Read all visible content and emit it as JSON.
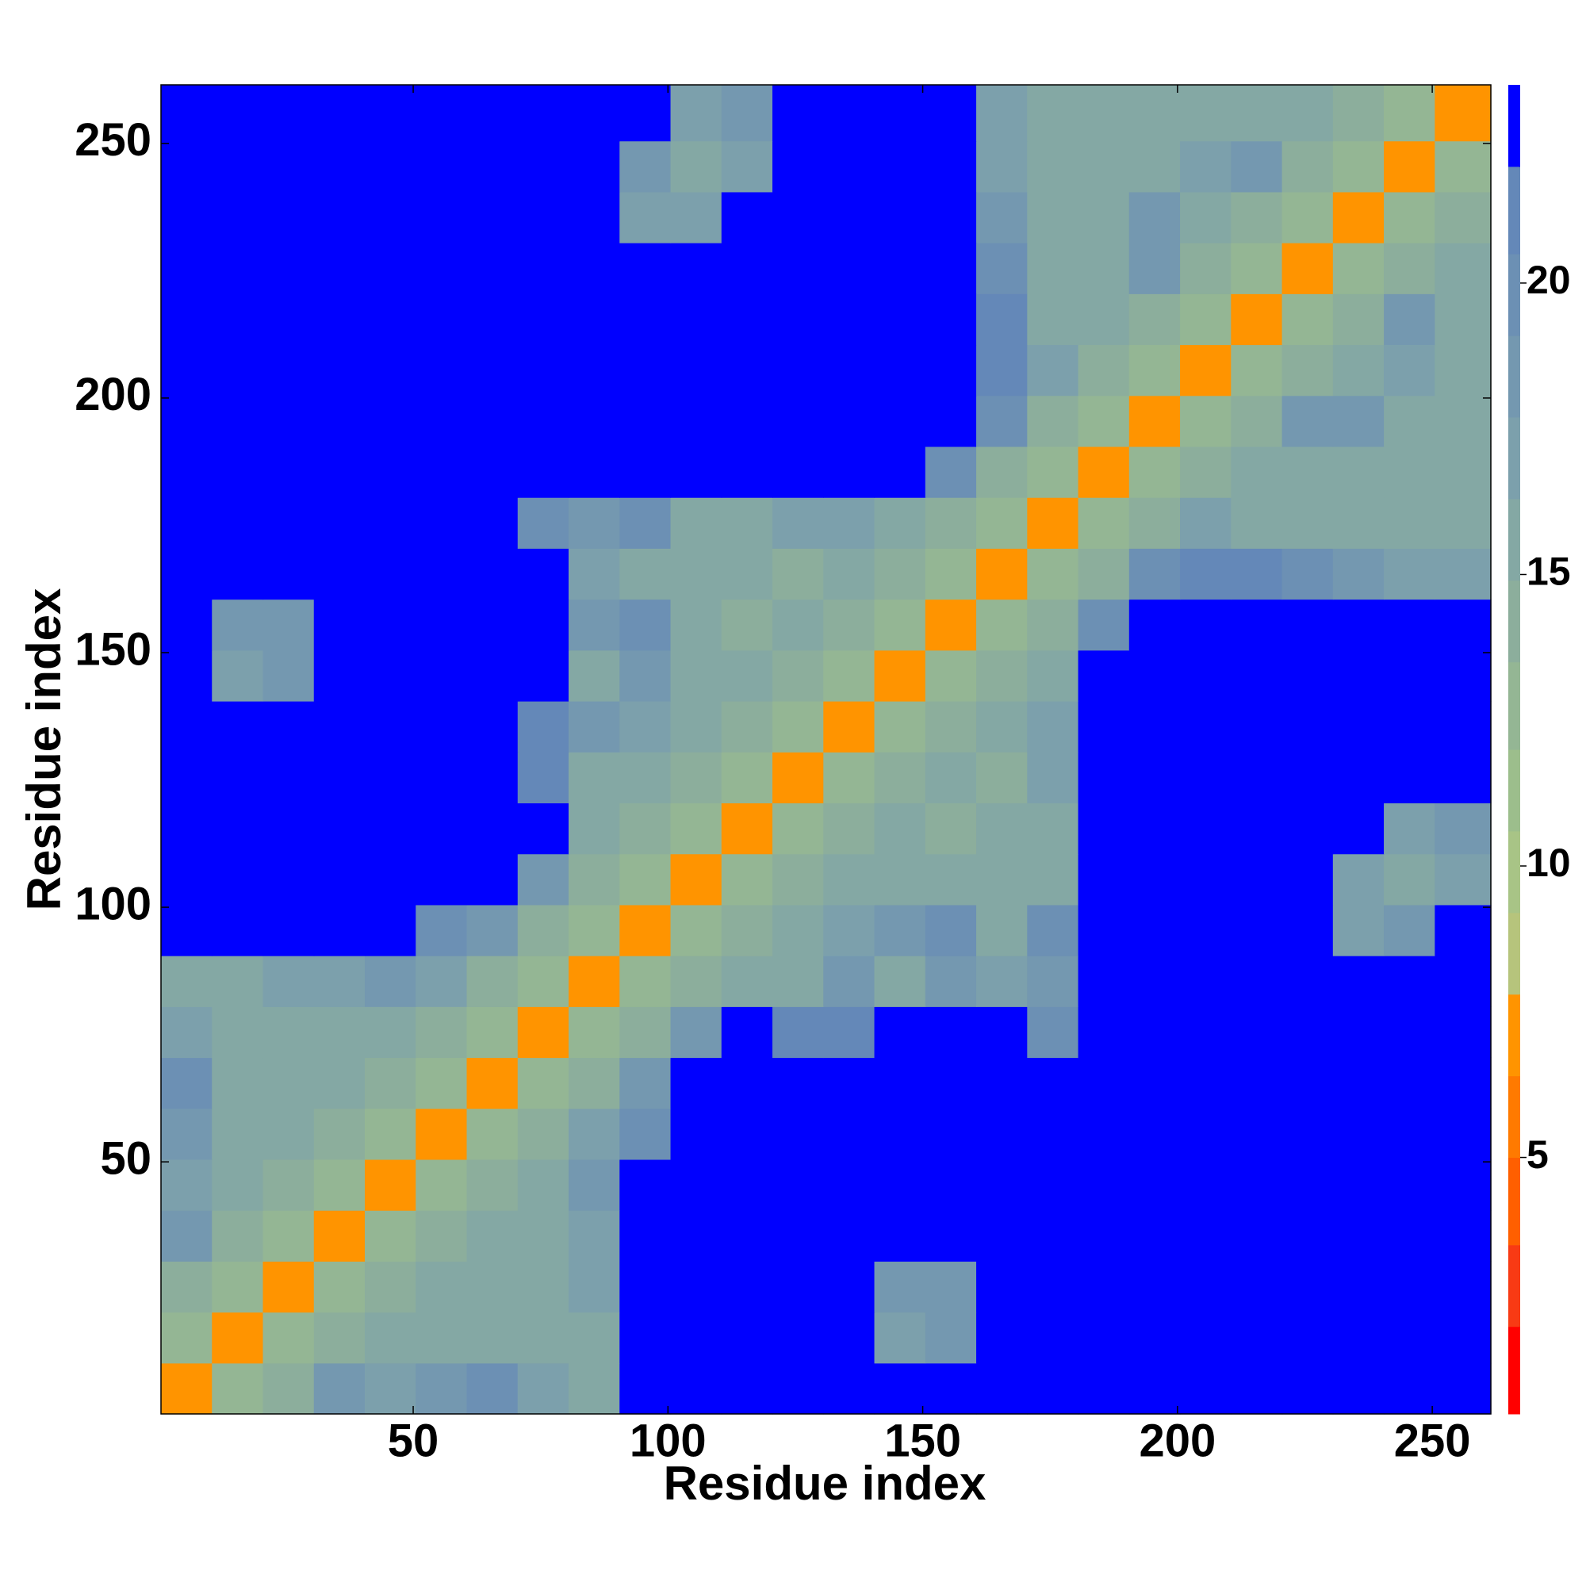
{
  "chart_data": {
    "type": "heatmap",
    "x_label": "Residue index",
    "y_label": "Residue index",
    "xbins": [
      0.5,
      10.5,
      20.5,
      30.5,
      40.5,
      50.5,
      60.5,
      70.5,
      80.5,
      90.5,
      100.5,
      110.5,
      120.5,
      130.5,
      140.5,
      150.5,
      160.5,
      170.5,
      180.5,
      190.5,
      200.5,
      210.5,
      220.5,
      230.5,
      240.5,
      250.5,
      261.5
    ],
    "ybins": [
      0.5,
      10.5,
      20.5,
      30.5,
      40.5,
      50.5,
      60.5,
      70.5,
      80.5,
      90.5,
      100.5,
      110.5,
      120.5,
      130.5,
      140.5,
      150.5,
      160.5,
      170.5,
      180.5,
      190.5,
      200.5,
      210.5,
      220.5,
      230.5,
      240.5,
      250.5,
      261.5
    ],
    "xlim": [
      0.5,
      261.5
    ],
    "ylim": [
      0.5,
      261.5
    ],
    "xticks": [
      50,
      100,
      150,
      200,
      250
    ],
    "yticks": [
      50,
      100,
      150,
      200,
      250
    ],
    "z": [
      [
        7,
        12,
        14,
        18,
        17,
        19,
        20,
        17,
        16,
        23,
        23,
        23,
        23,
        23,
        23,
        23,
        23,
        23,
        23,
        23,
        23,
        23,
        23,
        23,
        23,
        23
      ],
      [
        12,
        7,
        12,
        14,
        16,
        16,
        16,
        16,
        16,
        23,
        23,
        23,
        23,
        23,
        17,
        18,
        23,
        23,
        23,
        23,
        23,
        23,
        23,
        23,
        23,
        23
      ],
      [
        14,
        12,
        7,
        12,
        14,
        16,
        16,
        16,
        17,
        23,
        23,
        23,
        23,
        23,
        19,
        19,
        23,
        23,
        23,
        23,
        23,
        23,
        23,
        23,
        23,
        23
      ],
      [
        18,
        14,
        12,
        7,
        12,
        14,
        16,
        16,
        17,
        23,
        23,
        23,
        23,
        23,
        23,
        23,
        23,
        23,
        23,
        23,
        23,
        23,
        23,
        23,
        23,
        23
      ],
      [
        17,
        16,
        14,
        12,
        7,
        12,
        14,
        16,
        18,
        23,
        23,
        23,
        23,
        23,
        23,
        23,
        23,
        23,
        23,
        23,
        23,
        23,
        23,
        23,
        23,
        23
      ],
      [
        19,
        16,
        16,
        14,
        12,
        7,
        12,
        14,
        17,
        20,
        23,
        23,
        23,
        23,
        23,
        23,
        23,
        23,
        23,
        23,
        23,
        23,
        23,
        23,
        23,
        23
      ],
      [
        20,
        16,
        16,
        16,
        14,
        12,
        7,
        12,
        14,
        18,
        23,
        23,
        23,
        23,
        23,
        23,
        23,
        23,
        23,
        23,
        23,
        23,
        23,
        23,
        23,
        23
      ],
      [
        17,
        16,
        16,
        16,
        16,
        14,
        12,
        7,
        12,
        14,
        18,
        23,
        21,
        21,
        23,
        23,
        23,
        20,
        23,
        23,
        23,
        23,
        23,
        23,
        23,
        23
      ],
      [
        16,
        16,
        17,
        17,
        18,
        17,
        14,
        12,
        7,
        12,
        14,
        15,
        16,
        19,
        16,
        18,
        17,
        19,
        23,
        23,
        23,
        23,
        23,
        23,
        23,
        23
      ],
      [
        23,
        23,
        23,
        23,
        23,
        20,
        18,
        14,
        12,
        7,
        12,
        14,
        15,
        17,
        18,
        20,
        16,
        20,
        23,
        23,
        23,
        23,
        23,
        17,
        19,
        23
      ],
      [
        23,
        23,
        23,
        23,
        23,
        23,
        23,
        18,
        14,
        12,
        7,
        12,
        14,
        15,
        16,
        16,
        15,
        16,
        23,
        23,
        23,
        23,
        23,
        17,
        16,
        17
      ],
      [
        23,
        23,
        23,
        23,
        23,
        23,
        23,
        23,
        15,
        14,
        12,
        7,
        12,
        14,
        15,
        14,
        15,
        15,
        23,
        23,
        23,
        23,
        23,
        23,
        17,
        18
      ],
      [
        23,
        23,
        23,
        23,
        23,
        23,
        23,
        21,
        16,
        15,
        14,
        12,
        7,
        12,
        14,
        15,
        14,
        17,
        23,
        23,
        23,
        23,
        23,
        23,
        23,
        23
      ],
      [
        23,
        23,
        23,
        23,
        23,
        23,
        23,
        21,
        19,
        17,
        15,
        14,
        12,
        7,
        12,
        14,
        16,
        17,
        23,
        23,
        23,
        23,
        23,
        23,
        23,
        23
      ],
      [
        23,
        17,
        19,
        23,
        23,
        23,
        23,
        23,
        16,
        18,
        16,
        15,
        14,
        12,
        7,
        12,
        14,
        15,
        23,
        23,
        23,
        23,
        23,
        23,
        23,
        23
      ],
      [
        23,
        18,
        19,
        23,
        23,
        23,
        23,
        23,
        18,
        20,
        16,
        14,
        15,
        14,
        12,
        7,
        12,
        14,
        20,
        23,
        23,
        23,
        23,
        23,
        23,
        23
      ],
      [
        23,
        23,
        23,
        23,
        23,
        23,
        23,
        23,
        17,
        16,
        15,
        15,
        14,
        16,
        14,
        12,
        7,
        12,
        14,
        20,
        21,
        21,
        20,
        19,
        17,
        17
      ],
      [
        23,
        23,
        23,
        23,
        23,
        23,
        23,
        20,
        19,
        20,
        16,
        15,
        17,
        17,
        15,
        14,
        12,
        7,
        12,
        14,
        17,
        16,
        16,
        16,
        16,
        16
      ],
      [
        23,
        23,
        23,
        23,
        23,
        23,
        23,
        23,
        23,
        23,
        23,
        23,
        23,
        23,
        23,
        20,
        14,
        12,
        7,
        12,
        14,
        16,
        16,
        16,
        16,
        16
      ],
      [
        23,
        23,
        23,
        23,
        23,
        23,
        23,
        23,
        23,
        23,
        23,
        23,
        23,
        23,
        23,
        23,
        20,
        14,
        12,
        7,
        12,
        14,
        18,
        18,
        16,
        16
      ],
      [
        23,
        23,
        23,
        23,
        23,
        23,
        23,
        23,
        23,
        23,
        23,
        23,
        23,
        23,
        23,
        23,
        21,
        17,
        14,
        12,
        7,
        12,
        14,
        16,
        17,
        16
      ],
      [
        23,
        23,
        23,
        23,
        23,
        23,
        23,
        23,
        23,
        23,
        23,
        23,
        23,
        23,
        23,
        23,
        21,
        16,
        16,
        14,
        12,
        7,
        12,
        14,
        18,
        16
      ],
      [
        23,
        23,
        23,
        23,
        23,
        23,
        23,
        23,
        23,
        23,
        23,
        23,
        23,
        23,
        23,
        23,
        20,
        16,
        16,
        18,
        14,
        12,
        7,
        12,
        14,
        16
      ],
      [
        23,
        23,
        23,
        23,
        23,
        23,
        23,
        23,
        23,
        17,
        17,
        23,
        23,
        23,
        23,
        23,
        19,
        16,
        16,
        18,
        16,
        14,
        12,
        7,
        12,
        14
      ],
      [
        23,
        23,
        23,
        23,
        23,
        23,
        23,
        23,
        23,
        19,
        16,
        17,
        23,
        23,
        23,
        23,
        17,
        16,
        16,
        16,
        17,
        18,
        14,
        12,
        7,
        12
      ],
      [
        23,
        23,
        23,
        23,
        23,
        23,
        23,
        23,
        23,
        23,
        17,
        18,
        23,
        23,
        23,
        23,
        17,
        16,
        16,
        16,
        16,
        16,
        16,
        14,
        12,
        7
      ]
    ],
    "colorbar": {
      "bounds": [
        0.6,
        2.1,
        3.5,
        5.0,
        6.4,
        7.8,
        9.2,
        10.6,
        12.0,
        13.5,
        14.9,
        16.3,
        17.7,
        19.1,
        20.5,
        22.0,
        23.4
      ],
      "colors": [
        "#ff0000",
        "#f83a14",
        "#ff5f00",
        "#ff7a00",
        "#ff9400",
        "#b6c47c",
        "#a8c486",
        "#9cbe8c",
        "#94b694",
        "#8cae9c",
        "#84a8a4",
        "#7ca0ac",
        "#7498b0",
        "#6c90b4",
        "#6488b8",
        "#0000ff"
      ],
      "ticks": [
        5,
        10,
        15,
        20
      ]
    }
  }
}
